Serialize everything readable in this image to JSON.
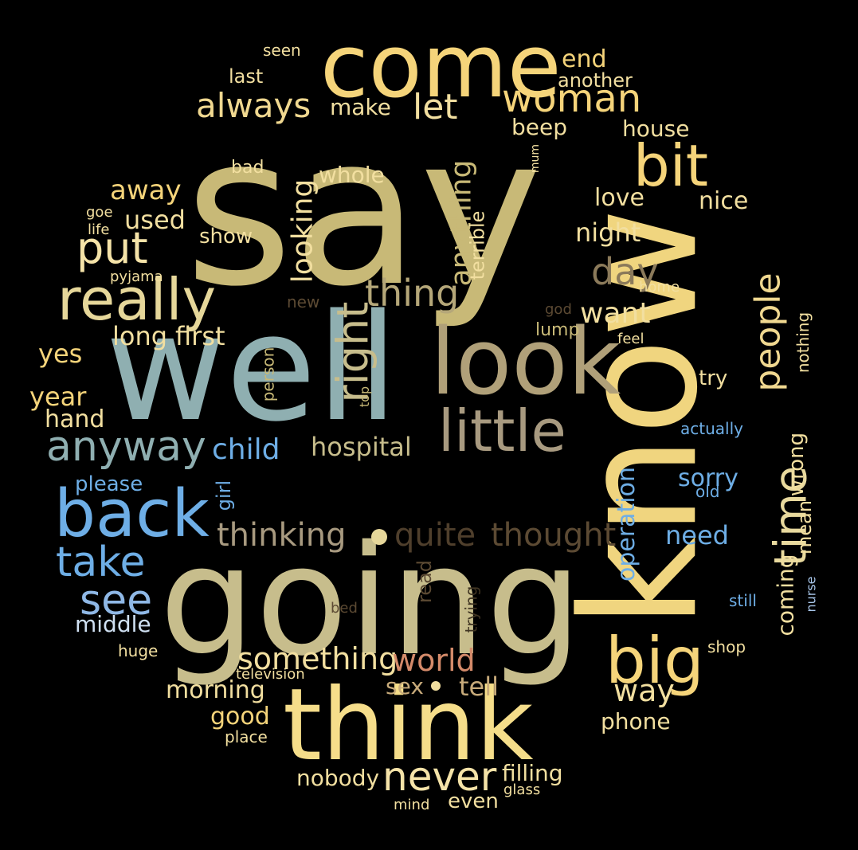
{
  "palette": {
    "gold": "#f5d47a",
    "khaki": "#c8b977",
    "tan": "#c7bd8c",
    "teal": "#8fafb1",
    "blue": "#6eaee6",
    "brown": "#8b7a5a",
    "darkbrown": "#5c4a33",
    "grey": "#a89a80",
    "salmon": "#d48a6a",
    "cream": "#f2dfa0"
  },
  "words": [
    "say",
    "come",
    "know",
    "well",
    "going",
    "think",
    "look",
    "little",
    "really",
    "back",
    "bit",
    "woman",
    "big",
    "time",
    "people",
    "anyway",
    "right",
    "thing",
    "always",
    "let",
    "put",
    "take",
    "see",
    "day",
    "thought",
    "quite",
    "thinking",
    "never",
    "child",
    "something",
    "world",
    "way",
    "hospital",
    "looking",
    "anything",
    "want",
    "end",
    "another",
    "make",
    "beep",
    "house",
    "whole",
    "away",
    "used",
    "love",
    "nice",
    "night",
    "show",
    "long",
    "first",
    "yes",
    "year",
    "hand",
    "please",
    "girl",
    "need",
    "sorry",
    "middle",
    "morning",
    "good",
    "phone",
    "sex",
    "tell",
    "nobody",
    "filling",
    "even",
    "mind",
    "glass",
    "operation",
    "coming",
    "mean",
    "wrong",
    "nothing",
    "terrible",
    "person",
    "top",
    "lump",
    "feel",
    "try",
    "home",
    "god",
    "new",
    "old",
    "actually",
    "read",
    "trying",
    "bed",
    "nurse",
    "still",
    "shop",
    "huge",
    "television",
    "place",
    "seen",
    "last",
    "bad",
    "goe",
    "life",
    "pyjama",
    "mum"
  ]
}
